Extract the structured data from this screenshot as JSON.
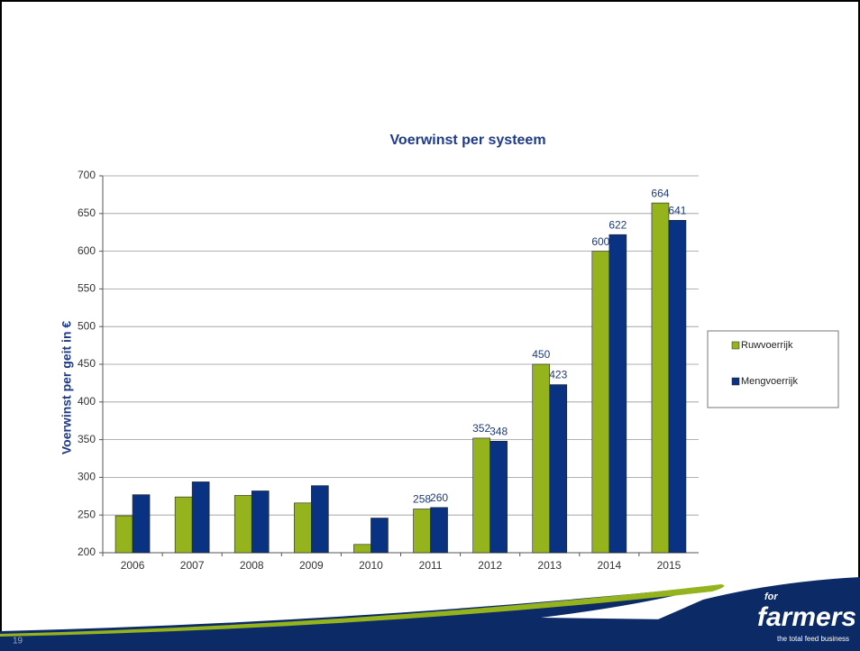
{
  "chart_data": {
    "type": "bar",
    "title": "Voerwinst per systeem",
    "ylabel": "Voerwinst per geit in €",
    "categories": [
      "2006",
      "2007",
      "2008",
      "2009",
      "2010",
      "2011",
      "2012",
      "2013",
      "2014",
      "2015"
    ],
    "series": [
      {
        "name": "Ruwvoerrijk",
        "color": "#94b31c",
        "values": [
          249,
          274,
          276,
          266,
          211,
          258,
          352,
          450,
          600,
          664
        ],
        "value_labels": [
          null,
          null,
          null,
          null,
          null,
          "258",
          "352",
          "450",
          "600",
          "664"
        ]
      },
      {
        "name": "Mengvoerrijk",
        "color": "#0a3282",
        "values": [
          277,
          294,
          282,
          289,
          246,
          260,
          348,
          423,
          622,
          641
        ],
        "value_labels": [
          null,
          null,
          null,
          null,
          null,
          "260",
          "348",
          "423",
          "622",
          "641"
        ]
      }
    ],
    "ylim": [
      200,
      700
    ],
    "yticks": [
      200,
      250,
      300,
      350,
      400,
      450,
      500,
      550,
      600,
      650,
      700
    ],
    "grid": true,
    "legend": "right"
  },
  "slide": {
    "page_number": "19",
    "logo": {
      "small": "for",
      "name": "farmers",
      "tagline": "the total feed business"
    }
  }
}
